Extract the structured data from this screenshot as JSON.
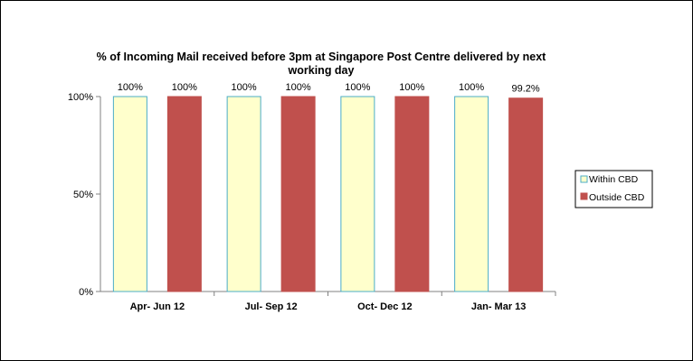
{
  "chart_data": {
    "type": "bar",
    "title_line1": "% of Incoming Mail received before 3pm at Singapore Post Centre delivered by next",
    "title_line2": "working day",
    "categories": [
      "Apr- Jun 12",
      "Jul- Sep 12",
      "Oct- Dec 12",
      "Jan- Mar 13"
    ],
    "series": [
      {
        "name": "Within CBD",
        "values": [
          100,
          100,
          100,
          100
        ],
        "labels": [
          "100%",
          "100%",
          "100%",
          "100%"
        ],
        "fill": "#FFFFCC",
        "stroke": "#4BACC6"
      },
      {
        "name": "Outside CBD",
        "values": [
          100,
          100,
          100,
          99.2
        ],
        "labels": [
          "100%",
          "100%",
          "100%",
          "99.2%"
        ],
        "fill": "#C0504D",
        "stroke": "#C0504D"
      }
    ],
    "yticks": [
      "0%",
      "50%",
      "100%"
    ],
    "ylim": [
      0,
      100
    ],
    "grid": false,
    "legend_position": "right"
  }
}
